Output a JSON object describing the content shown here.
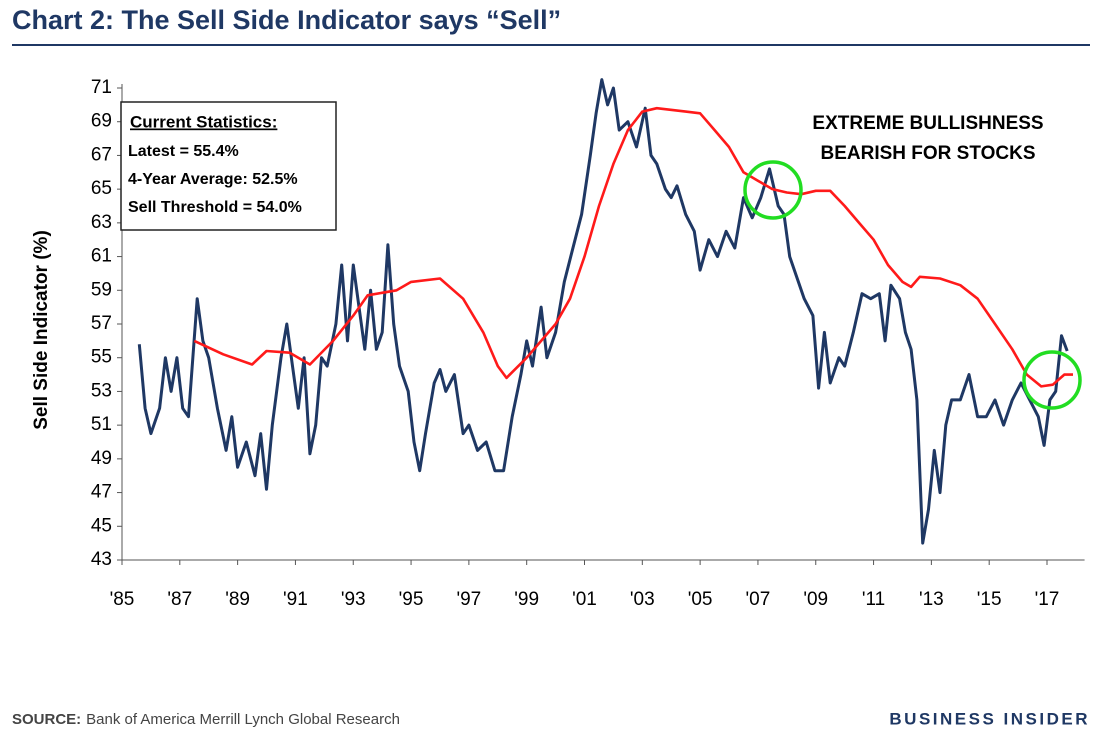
{
  "chart_data": {
    "type": "line",
    "title": "Chart 2: The Sell Side Indicator says “Sell”",
    "y_label": "Sell Side Indicator (%)",
    "stats_box": {
      "heading": "Current Statistics:",
      "lines": [
        "Latest = 55.4%",
        "4-Year Average: 52.5%",
        "Sell Threshold = 54.0%"
      ]
    },
    "annotation": [
      "EXTREME BULLISHNESS",
      "BEARISH FOR STOCKS"
    ],
    "source_label": "SOURCE:",
    "source": "Bank of America Merrill Lynch Global Research",
    "brand": "BUSINESS INSIDER",
    "xlim": [
      1985,
      2018.3
    ],
    "xticks": [
      {
        "value": 1985,
        "label": "'85"
      },
      {
        "value": 1987,
        "label": "'87"
      },
      {
        "value": 1989,
        "label": "'89"
      },
      {
        "value": 1991,
        "label": "'91"
      },
      {
        "value": 1993,
        "label": "'93"
      },
      {
        "value": 1995,
        "label": "'95"
      },
      {
        "value": 1997,
        "label": "'97"
      },
      {
        "value": 1999,
        "label": "'99"
      },
      {
        "value": 2001,
        "label": "'01"
      },
      {
        "value": 2003,
        "label": "'03"
      },
      {
        "value": 2005,
        "label": "'05"
      },
      {
        "value": 2007,
        "label": "'07"
      },
      {
        "value": 2009,
        "label": "'09"
      },
      {
        "value": 2011,
        "label": "'11"
      },
      {
        "value": 2013,
        "label": "'13"
      },
      {
        "value": 2015,
        "label": "'15"
      },
      {
        "value": 2017,
        "label": "'17"
      }
    ],
    "ylim": [
      43,
      71
    ],
    "yticks": [
      43,
      45,
      47,
      49,
      51,
      53,
      55,
      57,
      59,
      61,
      63,
      65,
      67,
      69,
      71
    ],
    "series": [
      {
        "color": "#1f3864",
        "x": [
          1985.6,
          1985.8,
          1986.0,
          1986.3,
          1986.5,
          1986.7,
          1986.9,
          1987.1,
          1987.3,
          1987.6,
          1987.8,
          1988.0,
          1988.3,
          1988.6,
          1988.8,
          1989.0,
          1989.3,
          1989.6,
          1989.8,
          1990.0,
          1990.2,
          1990.5,
          1990.7,
          1990.9,
          1991.1,
          1991.3,
          1991.5,
          1991.7,
          1991.9,
          1992.1,
          1992.4,
          1992.6,
          1992.8,
          1993.0,
          1993.2,
          1993.4,
          1993.6,
          1993.8,
          1994.0,
          1994.2,
          1994.4,
          1994.6,
          1994.9,
          1995.1,
          1995.3,
          1995.5,
          1995.8,
          1996.0,
          1996.2,
          1996.5,
          1996.8,
          1997.0,
          1997.3,
          1997.6,
          1997.9,
          1998.2,
          1998.5,
          1998.8,
          1999.0,
          1999.2,
          1999.5,
          1999.7,
          2000.0,
          2000.3,
          2000.6,
          2000.9,
          2001.2,
          2001.4,
          2001.6,
          2001.8,
          2002.0,
          2002.2,
          2002.5,
          2002.8,
          2003.1,
          2003.3,
          2003.5,
          2003.8,
          2004.0,
          2004.2,
          2004.5,
          2004.8,
          2005.0,
          2005.3,
          2005.6,
          2005.9,
          2006.2,
          2006.5,
          2006.8,
          2007.1,
          2007.4,
          2007.7,
          2007.9,
          2008.1,
          2008.4,
          2008.6,
          2008.9,
          2009.1,
          2009.3,
          2009.5,
          2009.8,
          2010.0,
          2010.3,
          2010.6,
          2010.9,
          2011.2,
          2011.4,
          2011.6,
          2011.9,
          2012.1,
          2012.3,
          2012.5,
          2012.7,
          2012.9,
          2013.1,
          2013.3,
          2013.5,
          2013.7,
          2014.0,
          2014.3,
          2014.6,
          2014.9,
          2015.2,
          2015.5,
          2015.8,
          2016.1,
          2016.4,
          2016.7,
          2016.9,
          2017.1,
          2017.3,
          2017.5,
          2017.7
        ],
        "values": [
          55.8,
          52,
          50.5,
          52,
          55,
          53,
          55,
          52,
          51.5,
          58.5,
          56,
          55,
          52,
          49.5,
          51.5,
          48.5,
          50,
          48,
          50.5,
          47.2,
          51,
          55,
          57,
          54.5,
          52,
          55,
          49.3,
          51,
          55,
          54.5,
          57,
          60.5,
          56,
          60.5,
          58,
          55.5,
          59,
          55.5,
          56.5,
          61.7,
          57,
          54.5,
          53,
          50,
          48.3,
          50.5,
          53.5,
          54.3,
          53,
          54,
          50.5,
          51,
          49.5,
          50,
          48.3,
          48.3,
          51.5,
          54,
          56,
          54.5,
          58,
          55,
          56.5,
          59.5,
          61.5,
          63.5,
          67,
          69.5,
          71.5,
          70,
          71,
          68.5,
          69,
          67.5,
          69.8,
          67,
          66.5,
          65,
          64.5,
          65.2,
          63.5,
          62.5,
          60.2,
          62,
          61,
          62.5,
          61.5,
          64.5,
          63.3,
          64.5,
          66.2,
          64,
          63.5,
          61,
          59.5,
          58.5,
          57.5,
          53.2,
          56.5,
          53.5,
          55,
          54.5,
          56.5,
          58.8,
          58.5,
          58.8,
          56,
          59.3,
          58.5,
          56.5,
          55.5,
          52.5,
          44,
          46,
          49.5,
          47,
          51,
          52.5,
          52.5,
          54,
          51.5,
          51.5,
          52.5,
          51,
          52.5,
          53.5,
          52.5,
          51.5,
          49.8,
          52.5,
          53,
          56.3,
          55.4
        ]
      },
      {
        "color": "#ff1a1a",
        "x": [
          1987.5,
          1988.5,
          1989.5,
          1990.0,
          1990.8,
          1991.5,
          1992.3,
          1993.0,
          1993.5,
          1994.5,
          1995.0,
          1996.0,
          1996.8,
          1997.5,
          1998.0,
          1998.3,
          1999.0,
          2000.0,
          2000.5,
          2001.0,
          2001.5,
          2002.0,
          2002.5,
          2003.0,
          2003.5,
          2004.5,
          2005.0,
          2005.5,
          2006.0,
          2006.5,
          2007.0,
          2007.5,
          2008.0,
          2008.5,
          2009.0,
          2009.5,
          2010.0,
          2010.5,
          2011.0,
          2011.5,
          2012.0,
          2012.3,
          2012.6,
          2013.3,
          2014.0,
          2014.6,
          2015.2,
          2015.8,
          2016.3,
          2016.8,
          2017.2,
          2017.6,
          2017.9
        ],
        "values": [
          56,
          55.2,
          54.6,
          55.4,
          55.3,
          54.6,
          56,
          57.5,
          58.7,
          59,
          59.5,
          59.7,
          58.5,
          56.5,
          54.5,
          53.8,
          55,
          57,
          58.5,
          61,
          64,
          66.5,
          68.5,
          69.6,
          69.8,
          69.6,
          69.5,
          68.5,
          67.5,
          66,
          65.5,
          65,
          64.8,
          64.7,
          64.9,
          64.9,
          64,
          63,
          62,
          60.5,
          59.5,
          59.2,
          59.8,
          59.7,
          59.3,
          58.5,
          57,
          55.5,
          54,
          53.3,
          53.4,
          54,
          54
        ]
      }
    ]
  }
}
